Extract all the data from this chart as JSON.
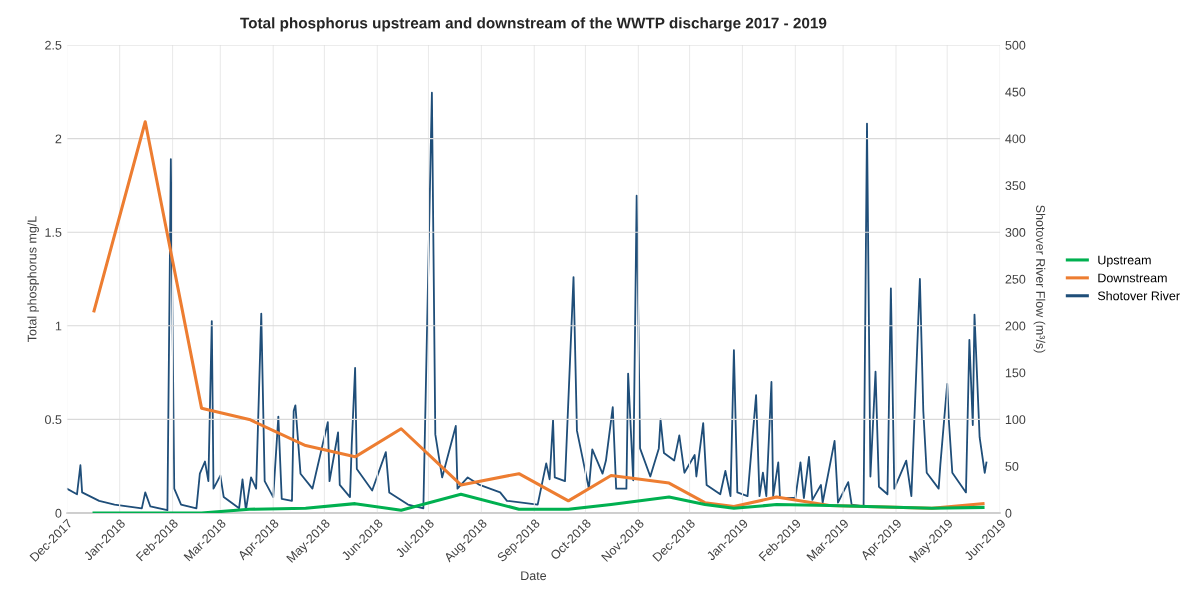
{
  "chart_data": {
    "type": "line",
    "title": "Total phosphorus upstream and downstream of the WWTP discharge 2017 - 2019",
    "xlabel": "Date",
    "ylabel": "Total phosphorus mg/L",
    "y2label": "Shotover River Flow (m³/s)",
    "xlim": [
      "2017-12-01",
      "2019-06-01"
    ],
    "xticks": [
      {
        "value": "2017-12-01",
        "label": "Dec-2017"
      },
      {
        "value": "2018-01-01",
        "label": "Jan-2018"
      },
      {
        "value": "2018-02-01",
        "label": "Feb-2018"
      },
      {
        "value": "2018-03-01",
        "label": "Mar-2018"
      },
      {
        "value": "2018-04-01",
        "label": "Apr-2018"
      },
      {
        "value": "2018-05-01",
        "label": "May-2018"
      },
      {
        "value": "2018-06-01",
        "label": "Jun-2018"
      },
      {
        "value": "2018-07-01",
        "label": "Jul-2018"
      },
      {
        "value": "2018-08-01",
        "label": "Aug-2018"
      },
      {
        "value": "2018-09-01",
        "label": "Sep-2018"
      },
      {
        "value": "2018-10-01",
        "label": "Oct-2018"
      },
      {
        "value": "2018-11-01",
        "label": "Nov-2018"
      },
      {
        "value": "2018-12-01",
        "label": "Dec-2018"
      },
      {
        "value": "2019-01-01",
        "label": "Jan-2019"
      },
      {
        "value": "2019-02-01",
        "label": "Feb-2019"
      },
      {
        "value": "2019-03-01",
        "label": "Mar-2019"
      },
      {
        "value": "2019-04-01",
        "label": "Apr-2019"
      },
      {
        "value": "2019-05-01",
        "label": "May-2019"
      },
      {
        "value": "2019-06-01",
        "label": "Jun-2019"
      }
    ],
    "ylim": [
      0,
      2.5
    ],
    "yticks": [
      0,
      0.5,
      1,
      1.5,
      2,
      2.5
    ],
    "y2lim": [
      0,
      500
    ],
    "y2ticks": [
      0,
      50,
      100,
      150,
      200,
      250,
      300,
      350,
      400,
      450,
      500
    ],
    "grid": true,
    "legend": "right",
    "marker": "none",
    "line_style": "solid",
    "series": [
      {
        "name": "Upstream",
        "color": "#00b050",
        "x": [
          "2017-12-17",
          "2018-01-16",
          "2018-02-18",
          "2018-03-18",
          "2018-04-20",
          "2018-05-19",
          "2018-06-15",
          "2018-07-20",
          "2018-08-23",
          "2018-09-21",
          "2018-10-16",
          "2018-11-19",
          "2018-12-10",
          "2018-12-27",
          "2019-01-21",
          "2019-02-21",
          "2019-04-22",
          "2019-05-22"
        ],
        "values": [
          0,
          0,
          0,
          0.02,
          0.025,
          0.05,
          0.015,
          0.1,
          0.02,
          0.02,
          0.045,
          0.085,
          0.045,
          0.025,
          0.045,
          0.04,
          0.025,
          0.03
        ]
      },
      {
        "name": "Downstream",
        "color": "#ed7d31",
        "x": [
          "2017-12-17",
          "2018-01-16",
          "2018-02-18",
          "2018-03-18",
          "2018-04-20",
          "2018-05-19",
          "2018-06-15",
          "2018-07-20",
          "2018-08-23",
          "2018-09-21",
          "2018-10-16",
          "2018-11-19",
          "2018-12-10",
          "2018-12-27",
          "2019-01-21",
          "2019-02-21",
          "2019-04-22",
          "2019-05-22"
        ],
        "values": [
          1.08,
          2.09,
          0.56,
          0.5,
          0.36,
          0.3,
          0.45,
          0.15,
          0.21,
          0.065,
          0.2,
          0.16,
          0.055,
          0.035,
          0.085,
          0.04,
          0.025,
          0.05
        ]
      },
      {
        "name": "Shotover River",
        "color": "#1f4e79",
        "axis": "y2",
        "x": [
          "2017-12-01",
          "2017-12-07",
          "2017-12-09",
          "2017-12-10",
          "2017-12-20",
          "2017-12-29",
          "2018-01-14",
          "2018-01-16",
          "2018-01-19",
          "2018-01-29",
          "2018-01-31",
          "2018-02-02",
          "2018-02-06",
          "2018-02-15",
          "2018-02-17",
          "2018-02-20",
          "2018-02-22",
          "2018-02-24",
          "2018-02-25",
          "2018-03-01",
          "2018-03-03",
          "2018-03-12",
          "2018-03-14",
          "2018-03-16",
          "2018-03-19",
          "2018-03-22",
          "2018-03-25",
          "2018-03-27",
          "2018-04-01",
          "2018-04-04",
          "2018-04-06",
          "2018-04-12",
          "2018-04-13",
          "2018-04-14",
          "2018-04-17",
          "2018-04-24",
          "2018-04-26",
          "2018-05-03",
          "2018-05-04",
          "2018-05-09",
          "2018-05-10",
          "2018-05-16",
          "2018-05-17",
          "2018-05-19",
          "2018-05-20",
          "2018-05-29",
          "2018-06-06",
          "2018-06-08",
          "2018-06-19",
          "2018-06-28",
          "2018-07-03",
          "2018-07-05",
          "2018-07-09",
          "2018-07-17",
          "2018-07-18",
          "2018-07-24",
          "2018-07-31",
          "2018-08-12",
          "2018-08-16",
          "2018-09-03",
          "2018-09-08",
          "2018-09-10",
          "2018-09-12",
          "2018-09-13",
          "2018-09-19",
          "2018-09-24",
          "2018-09-26",
          "2018-10-03",
          "2018-10-05",
          "2018-10-11",
          "2018-10-13",
          "2018-10-17",
          "2018-10-19",
          "2018-10-25",
          "2018-10-26",
          "2018-10-29",
          "2018-10-31",
          "2018-11-02",
          "2018-11-08",
          "2018-11-13",
          "2018-11-14",
          "2018-11-16",
          "2018-11-22",
          "2018-11-25",
          "2018-11-28",
          "2018-12-04",
          "2018-12-05",
          "2018-12-09",
          "2018-12-11",
          "2018-12-19",
          "2018-12-22",
          "2018-12-25",
          "2018-12-27",
          "2018-12-29",
          "2019-01-04",
          "2019-01-09",
          "2019-01-11",
          "2019-01-13",
          "2019-01-15",
          "2019-01-18",
          "2019-01-19",
          "2019-01-22",
          "2019-01-23",
          "2019-02-01",
          "2019-02-04",
          "2019-02-06",
          "2019-02-09",
          "2019-02-11",
          "2019-02-16",
          "2019-02-17",
          "2019-02-24",
          "2019-02-26",
          "2019-03-04",
          "2019-03-06",
          "2019-03-13",
          "2019-03-15",
          "2019-03-17",
          "2019-03-20",
          "2019-03-22",
          "2019-03-27",
          "2019-03-29",
          "2019-03-31",
          "2019-04-07",
          "2019-04-10",
          "2019-04-15",
          "2019-04-17",
          "2019-04-19",
          "2019-04-26",
          "2019-04-27",
          "2019-05-01",
          "2019-05-02",
          "2019-05-04",
          "2019-05-12",
          "2019-05-14",
          "2019-05-16",
          "2019-05-17",
          "2019-05-20",
          "2019-05-23",
          "2019-05-24"
        ],
        "values": [
          26,
          20,
          51,
          22,
          13,
          9,
          5,
          22,
          7,
          3,
          378,
          26,
          9,
          5,
          42,
          55,
          34,
          205,
          26,
          40,
          17,
          5,
          36,
          3,
          38,
          26,
          213,
          34,
          17,
          103,
          15,
          13,
          109,
          115,
          42,
          26,
          42,
          97,
          34,
          86,
          30,
          17,
          72,
          155,
          47,
          24,
          65,
          22,
          9,
          5,
          449,
          84,
          38,
          93,
          26,
          38,
          30,
          22,
          13,
          9,
          53,
          36,
          99,
          38,
          34,
          252,
          88,
          26,
          68,
          42,
          56,
          113,
          26,
          26,
          149,
          35,
          339,
          69,
          39,
          69,
          100,
          64,
          56,
          83,
          43,
          62,
          39,
          96,
          30,
          20,
          45,
          18,
          174,
          22,
          18,
          126,
          18,
          43,
          18,
          140,
          18,
          54,
          16,
          16,
          54,
          16,
          60,
          14,
          30,
          11,
          77,
          11,
          33,
          9,
          7,
          416,
          39,
          151,
          28,
          20,
          240,
          26,
          56,
          18,
          250,
          109,
          43,
          26,
          52,
          138,
          98,
          43,
          22,
          185,
          94,
          212,
          81,
          43,
          54
        ]
      }
    ]
  }
}
